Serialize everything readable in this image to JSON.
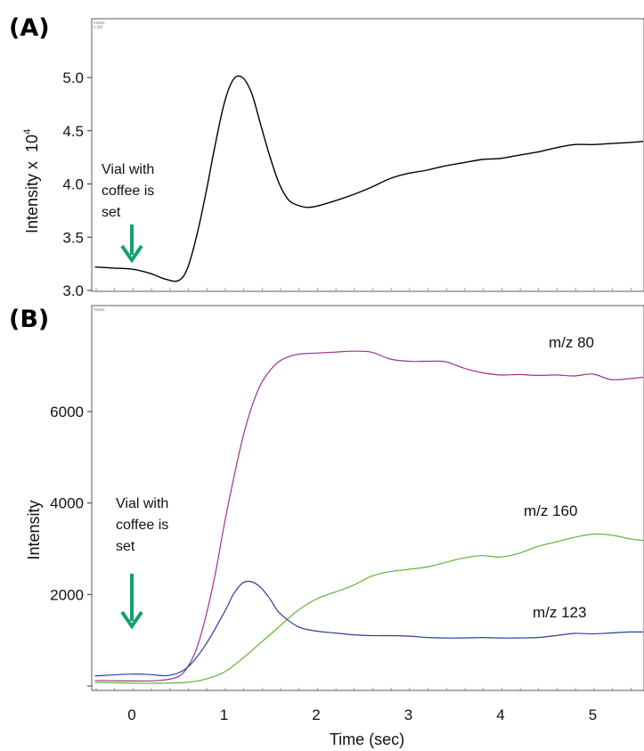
{
  "chart_data": [
    {
      "panel_label": "(A)",
      "type": "line",
      "ylabel": "Intensity x",
      "ylabel_exponent": "10",
      "ylabel_exponent_power": "4",
      "yticks": [
        "3.0",
        "3.5",
        "4.0",
        "4.5",
        "5.0"
      ],
      "ylim": [
        3.0,
        5.35
      ],
      "xlim": [
        -0.4,
        5.6
      ],
      "annotation": [
        "Vial  with",
        "coffee is",
        "set"
      ],
      "arrow_x": 0,
      "arrow_color": "#14a06e",
      "series": [
        {
          "color": "#000000",
          "x": [
            -0.4,
            -0.2,
            0,
            0.2,
            0.35,
            0.5,
            0.6,
            0.7,
            0.8,
            0.9,
            1.0,
            1.1,
            1.2,
            1.3,
            1.4,
            1.5,
            1.6,
            1.7,
            1.8,
            1.9,
            2.0,
            2.2,
            2.4,
            2.6,
            2.8,
            3.0,
            3.2,
            3.4,
            3.6,
            3.8,
            4.0,
            4.2,
            4.4,
            4.6,
            4.8,
            5.0,
            5.2,
            5.4,
            5.6
          ],
          "y": [
            3.22,
            3.21,
            3.2,
            3.16,
            3.11,
            3.09,
            3.2,
            3.5,
            3.9,
            4.35,
            4.75,
            4.98,
            5.0,
            4.85,
            4.55,
            4.25,
            4.0,
            3.85,
            3.8,
            3.78,
            3.79,
            3.84,
            3.9,
            3.97,
            4.05,
            4.1,
            4.13,
            4.17,
            4.2,
            4.23,
            4.24,
            4.27,
            4.3,
            4.34,
            4.37,
            4.37,
            4.38,
            4.39,
            4.4
          ]
        }
      ]
    },
    {
      "panel_label": "(B)",
      "type": "line",
      "ylabel": "Intensity",
      "yticks": [
        "2000",
        "4000",
        "6000"
      ],
      "ylim": [
        0,
        7800
      ],
      "xlim": [
        -0.4,
        5.6
      ],
      "xticks": [
        "0",
        "1",
        "2",
        "3",
        "4",
        "5"
      ],
      "xlabel": "Time  (sec)",
      "annotation": [
        "Vial  with",
        "coffee is",
        "set"
      ],
      "arrow_x": 0,
      "arrow_color": "#14a06e",
      "series": [
        {
          "name": "m/z  80",
          "color": "#a0308f",
          "x": [
            -0.4,
            0,
            0.3,
            0.5,
            0.6,
            0.7,
            0.8,
            0.9,
            1.0,
            1.1,
            1.2,
            1.3,
            1.4,
            1.5,
            1.6,
            1.7,
            1.8,
            1.9,
            2.0,
            2.2,
            2.4,
            2.6,
            2.8,
            3.0,
            3.2,
            3.4,
            3.6,
            3.8,
            4.0,
            4.2,
            4.4,
            4.6,
            4.8,
            5.0,
            5.2,
            5.4,
            5.6
          ],
          "y": [
            120,
            110,
            120,
            200,
            400,
            800,
            1500,
            2400,
            3500,
            4500,
            5400,
            6100,
            6600,
            6900,
            7100,
            7200,
            7250,
            7270,
            7280,
            7300,
            7320,
            7300,
            7150,
            7100,
            7100,
            7090,
            6950,
            6850,
            6800,
            6810,
            6790,
            6800,
            6780,
            6820,
            6700,
            6720,
            6750
          ]
        },
        {
          "name": "m/z  160",
          "color": "#5fb335",
          "x": [
            -0.4,
            0,
            0.3,
            0.6,
            0.8,
            1.0,
            1.2,
            1.4,
            1.6,
            1.8,
            2.0,
            2.2,
            2.4,
            2.6,
            2.8,
            3.0,
            3.2,
            3.4,
            3.6,
            3.8,
            4.0,
            4.2,
            4.4,
            4.6,
            4.8,
            5.0,
            5.2,
            5.4,
            5.6
          ],
          "y": [
            80,
            60,
            60,
            80,
            150,
            300,
            600,
            950,
            1300,
            1650,
            1900,
            2050,
            2200,
            2400,
            2500,
            2550,
            2600,
            2700,
            2800,
            2850,
            2820,
            2900,
            3050,
            3150,
            3250,
            3320,
            3300,
            3220,
            3180
          ]
        },
        {
          "name": "m/z  123",
          "color": "#2b3f9a",
          "x": [
            -0.4,
            0,
            0.2,
            0.4,
            0.6,
            0.8,
            1.0,
            1.1,
            1.2,
            1.3,
            1.4,
            1.5,
            1.6,
            1.8,
            2.0,
            2.2,
            2.4,
            2.6,
            2.8,
            3.0,
            3.2,
            3.4,
            3.6,
            3.8,
            4.0,
            4.2,
            4.4,
            4.6,
            4.8,
            5.0,
            5.2,
            5.4,
            5.6
          ],
          "y": [
            220,
            260,
            250,
            230,
            400,
            900,
            1600,
            2000,
            2250,
            2280,
            2150,
            1900,
            1600,
            1300,
            1200,
            1160,
            1120,
            1100,
            1100,
            1090,
            1060,
            1050,
            1050,
            1060,
            1050,
            1050,
            1060,
            1100,
            1150,
            1140,
            1160,
            1180,
            1180
          ]
        }
      ]
    }
  ]
}
